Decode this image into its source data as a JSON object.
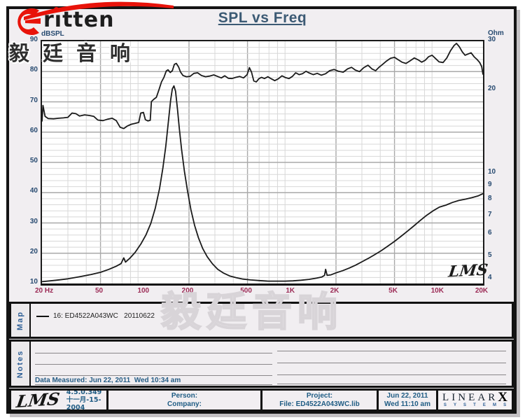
{
  "header": {
    "title": "SPL vs Freq"
  },
  "logo": {
    "brand": "ritten",
    "brand_display": "rıtten",
    "cjk": "毅廷音响"
  },
  "watermark": {
    "text": "毅廷音响"
  },
  "axes": {
    "left_title": "dBSPL",
    "right_title": "Ohm",
    "left_tick_values": [
      90,
      80,
      70,
      60,
      50,
      40,
      30,
      20,
      10
    ],
    "right_tick_values": [
      30,
      20,
      10,
      9,
      8,
      7,
      6,
      5,
      4
    ],
    "x_ticks": [
      {
        "f": 20,
        "label": "20 Hz"
      },
      {
        "f": 50,
        "label": "50"
      },
      {
        "f": 100,
        "label": "100"
      },
      {
        "f": 200,
        "label": "200"
      },
      {
        "f": 500,
        "label": "500"
      },
      {
        "f": 1000,
        "label": "1K"
      },
      {
        "f": 2000,
        "label": "2K"
      },
      {
        "f": 5000,
        "label": "5K"
      },
      {
        "f": 10000,
        "label": "10K"
      },
      {
        "f": 20000,
        "label": "20K"
      }
    ]
  },
  "chart_data": {
    "type": "line",
    "title": "SPL vs Freq",
    "x_scale": "log",
    "x_range": [
      20,
      20000
    ],
    "y_left": {
      "label": "dBSPL",
      "range": [
        10,
        90
      ],
      "minor_step": 2,
      "major_step": 10
    },
    "y_right": {
      "label": "Ohm",
      "scale": "log",
      "range": [
        4,
        30
      ],
      "ticks": [
        30,
        20,
        10,
        9,
        8,
        7,
        6,
        5,
        4
      ]
    },
    "grid": true,
    "major_freqs": [
      50,
      100,
      200,
      500,
      1000,
      2000,
      5000,
      10000
    ],
    "inplot_signature": "LMS",
    "series": [
      {
        "name": "16: ED4522A043WC 20110622 — SPL",
        "axis": "left",
        "points": [
          [
            20,
            63.5
          ],
          [
            20.3,
            68.8
          ],
          [
            21,
            65.2
          ],
          [
            22,
            64.5
          ],
          [
            24,
            64.4
          ],
          [
            26,
            64.6
          ],
          [
            28,
            64.7
          ],
          [
            30,
            64.9
          ],
          [
            32,
            66.3
          ],
          [
            34,
            66.1
          ],
          [
            36,
            65.3
          ],
          [
            39,
            65.7
          ],
          [
            42,
            65.5
          ],
          [
            45,
            65.2
          ],
          [
            48,
            64.0
          ],
          [
            52,
            63.8
          ],
          [
            56,
            64.3
          ],
          [
            60,
            64.6
          ],
          [
            64,
            63.8
          ],
          [
            68,
            61.6
          ],
          [
            72,
            61.2
          ],
          [
            76,
            62.0
          ],
          [
            81,
            62.6
          ],
          [
            86,
            62.9
          ],
          [
            91,
            63.2
          ],
          [
            94,
            66.3
          ],
          [
            98,
            66.5
          ],
          [
            101,
            64.1
          ],
          [
            105,
            63.7
          ],
          [
            109,
            63.9
          ],
          [
            111,
            70.1
          ],
          [
            115,
            70.8
          ],
          [
            120,
            71.5
          ],
          [
            125,
            74.0
          ],
          [
            130,
            76.6
          ],
          [
            135,
            78.1
          ],
          [
            140,
            80.2
          ],
          [
            144,
            80.6
          ],
          [
            149,
            79.7
          ],
          [
            154,
            80.3
          ],
          [
            159,
            82.4
          ],
          [
            164,
            82.7
          ],
          [
            170,
            81.5
          ],
          [
            175,
            79.9
          ],
          [
            182,
            78.7
          ],
          [
            192,
            78.3
          ],
          [
            203,
            78.4
          ],
          [
            216,
            79.4
          ],
          [
            229,
            79.6
          ],
          [
            243,
            78.7
          ],
          [
            259,
            78.3
          ],
          [
            276,
            78.5
          ],
          [
            295,
            78.9
          ],
          [
            313,
            78.4
          ],
          [
            332,
            77.9
          ],
          [
            350,
            78.6
          ],
          [
            370,
            77.8
          ],
          [
            392,
            77.7
          ],
          [
            416,
            78.1
          ],
          [
            442,
            78.4
          ],
          [
            470,
            77.9
          ],
          [
            497,
            79.0
          ],
          [
            515,
            81.3
          ],
          [
            532,
            79.9
          ],
          [
            552,
            76.9
          ],
          [
            574,
            76.6
          ],
          [
            597,
            77.6
          ],
          [
            622,
            78.1
          ],
          [
            652,
            77.7
          ],
          [
            688,
            78.3
          ],
          [
            726,
            77.6
          ],
          [
            766,
            77.0
          ],
          [
            810,
            77.6
          ],
          [
            858,
            78.6
          ],
          [
            908,
            78.0
          ],
          [
            958,
            77.7
          ],
          [
            1010,
            78.4
          ],
          [
            1064,
            79.6
          ],
          [
            1122,
            79.0
          ],
          [
            1184,
            79.3
          ],
          [
            1250,
            80.1
          ],
          [
            1320,
            79.5
          ],
          [
            1400,
            79.0
          ],
          [
            1490,
            79.4
          ],
          [
            1590,
            78.8
          ],
          [
            1700,
            79.3
          ],
          [
            1810,
            80.3
          ],
          [
            1940,
            80.7
          ],
          [
            2080,
            80.1
          ],
          [
            2240,
            79.8
          ],
          [
            2400,
            80.9
          ],
          [
            2550,
            81.4
          ],
          [
            2710,
            80.5
          ],
          [
            2890,
            80.0
          ],
          [
            3090,
            81.3
          ],
          [
            3300,
            82.1
          ],
          [
            3510,
            80.9
          ],
          [
            3720,
            80.3
          ],
          [
            3940,
            81.5
          ],
          [
            4150,
            82.4
          ],
          [
            4420,
            83.5
          ],
          [
            4700,
            84.4
          ],
          [
            5000,
            84.7
          ],
          [
            5300,
            83.9
          ],
          [
            5620,
            83.1
          ],
          [
            5990,
            82.7
          ],
          [
            6400,
            83.6
          ],
          [
            6820,
            84.5
          ],
          [
            7230,
            83.9
          ],
          [
            7650,
            83.1
          ],
          [
            8080,
            83.7
          ],
          [
            8520,
            84.9
          ],
          [
            9000,
            85.4
          ],
          [
            9520,
            84.3
          ],
          [
            10050,
            83.2
          ],
          [
            10700,
            83.0
          ],
          [
            11350,
            84.5
          ],
          [
            12000,
            86.8
          ],
          [
            12700,
            88.6
          ],
          [
            13200,
            89.3
          ],
          [
            13800,
            88.2
          ],
          [
            14450,
            86.5
          ],
          [
            15100,
            85.4
          ],
          [
            15800,
            85.8
          ],
          [
            16600,
            86.2
          ],
          [
            17400,
            84.9
          ],
          [
            18200,
            84.0
          ],
          [
            19000,
            83.0
          ],
          [
            19600,
            81.6
          ],
          [
            20000,
            79.0
          ]
        ]
      },
      {
        "name": "16: ED4522A043WC 20110622 — Impedance",
        "axis": "right",
        "points": [
          [
            20,
            4.06
          ],
          [
            25,
            4.11
          ],
          [
            30,
            4.16
          ],
          [
            36,
            4.23
          ],
          [
            43,
            4.31
          ],
          [
            50,
            4.39
          ],
          [
            57,
            4.5
          ],
          [
            64,
            4.62
          ],
          [
            69,
            4.72
          ],
          [
            72,
            4.95
          ],
          [
            74,
            4.78
          ],
          [
            79,
            4.93
          ],
          [
            86,
            5.18
          ],
          [
            94,
            5.55
          ],
          [
            102,
            6.0
          ],
          [
            110,
            6.6
          ],
          [
            118,
            7.5
          ],
          [
            126,
            8.8
          ],
          [
            133,
            10.5
          ],
          [
            139,
            12.5
          ],
          [
            145,
            15.5
          ],
          [
            150,
            18.4
          ],
          [
            154,
            20.2
          ],
          [
            158,
            20.7
          ],
          [
            162,
            19.8
          ],
          [
            167,
            17.0
          ],
          [
            172,
            14.5
          ],
          [
            178,
            12.2
          ],
          [
            186,
            10.2
          ],
          [
            195,
            8.7
          ],
          [
            206,
            7.4
          ],
          [
            218,
            6.5
          ],
          [
            232,
            5.85
          ],
          [
            248,
            5.35
          ],
          [
            266,
            5.0
          ],
          [
            288,
            4.72
          ],
          [
            314,
            4.5
          ],
          [
            344,
            4.36
          ],
          [
            378,
            4.26
          ],
          [
            418,
            4.2
          ],
          [
            466,
            4.15
          ],
          [
            525,
            4.12
          ],
          [
            600,
            4.1
          ],
          [
            690,
            4.08
          ],
          [
            790,
            4.08
          ],
          [
            900,
            4.08
          ],
          [
            1020,
            4.09
          ],
          [
            1160,
            4.11
          ],
          [
            1310,
            4.14
          ],
          [
            1470,
            4.18
          ],
          [
            1600,
            4.22
          ],
          [
            1670,
            4.28
          ],
          [
            1700,
            4.5
          ],
          [
            1740,
            4.28
          ],
          [
            1850,
            4.3
          ],
          [
            2000,
            4.37
          ],
          [
            2220,
            4.45
          ],
          [
            2460,
            4.55
          ],
          [
            2720,
            4.66
          ],
          [
            3000,
            4.79
          ],
          [
            3320,
            4.93
          ],
          [
            3680,
            5.09
          ],
          [
            4070,
            5.26
          ],
          [
            4500,
            5.46
          ],
          [
            4980,
            5.67
          ],
          [
            5510,
            5.91
          ],
          [
            6100,
            6.17
          ],
          [
            6750,
            6.45
          ],
          [
            7470,
            6.75
          ],
          [
            8260,
            7.05
          ],
          [
            9140,
            7.32
          ],
          [
            10100,
            7.55
          ],
          [
            11200,
            7.68
          ],
          [
            12400,
            7.85
          ],
          [
            13700,
            7.98
          ],
          [
            15200,
            8.07
          ],
          [
            16800,
            8.17
          ],
          [
            18600,
            8.3
          ],
          [
            20000,
            8.45
          ]
        ]
      }
    ]
  },
  "map_section": {
    "label": "Map",
    "legend": "16: ED4522A043WC   20110622"
  },
  "notes_section": {
    "label": "Notes",
    "data_measured": "Data Measured: Jun 22, 2011  Wed 10:34 am"
  },
  "footer": {
    "lms_logo": "LMS",
    "version": "4.5.0.349",
    "version_date": "十一月-15-2004",
    "person_label": "Person:",
    "company_label": "Company:",
    "project_label": "Project:",
    "file_label": "File: ED4522A043WC.lib",
    "date": "Jun 22, 2011",
    "time": "Wed 11:10 am",
    "linearx_row1": [
      "L",
      "I",
      "N",
      "E",
      "A",
      "R",
      "X"
    ],
    "linearx_row2": [
      "S",
      "Y",
      "S",
      "T",
      "E",
      "M",
      "S"
    ]
  },
  "colors": {
    "frame_bg": "#f1eef1",
    "plot_bg": "#ffffff",
    "grid_minor": "#d8d8d8",
    "grid_major": "#a9a9a9",
    "curve": "#1a1a1a",
    "title": "#3c5a74",
    "axis_blue": "#274a70",
    "freq_maroon": "#9b2a55",
    "footer_blue": "#1f5c84",
    "brand_red": "#e8130a"
  }
}
